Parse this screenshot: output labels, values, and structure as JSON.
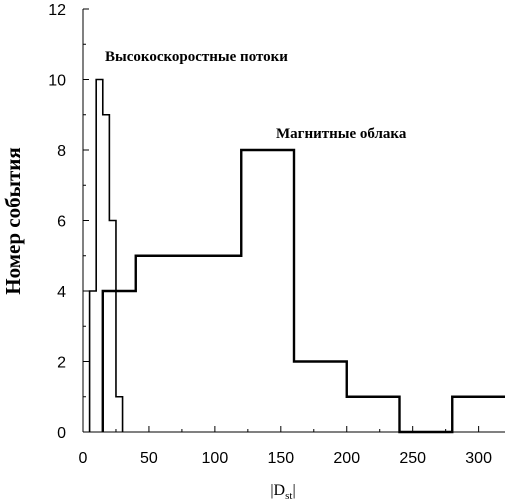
{
  "chart_data": {
    "type": "line",
    "step": true,
    "xlabel": "|D",
    "xlabel_sub": "st",
    "xlabel_close": "|",
    "ylabel": "Номер события",
    "xlim": [
      0,
      320
    ],
    "ylim": [
      0,
      12
    ],
    "xticks": [
      0,
      50,
      100,
      150,
      200,
      250,
      300
    ],
    "yticks": [
      0,
      2,
      4,
      6,
      8,
      10,
      12
    ],
    "grid": false,
    "annotations": [
      {
        "text": "Высокоскоростные потоки",
        "series": 0
      },
      {
        "text": "Магнитные облака",
        "series": 1
      }
    ],
    "series": [
      {
        "x": [
          5,
          10,
          15,
          20,
          25,
          30
        ],
        "values": [
          4,
          10,
          9,
          6,
          1,
          0
        ]
      },
      {
        "x": [
          15,
          40,
          120,
          160,
          200,
          240,
          280,
          320
        ],
        "values": [
          4,
          5,
          8,
          2,
          1,
          0,
          1,
          1
        ]
      }
    ]
  }
}
